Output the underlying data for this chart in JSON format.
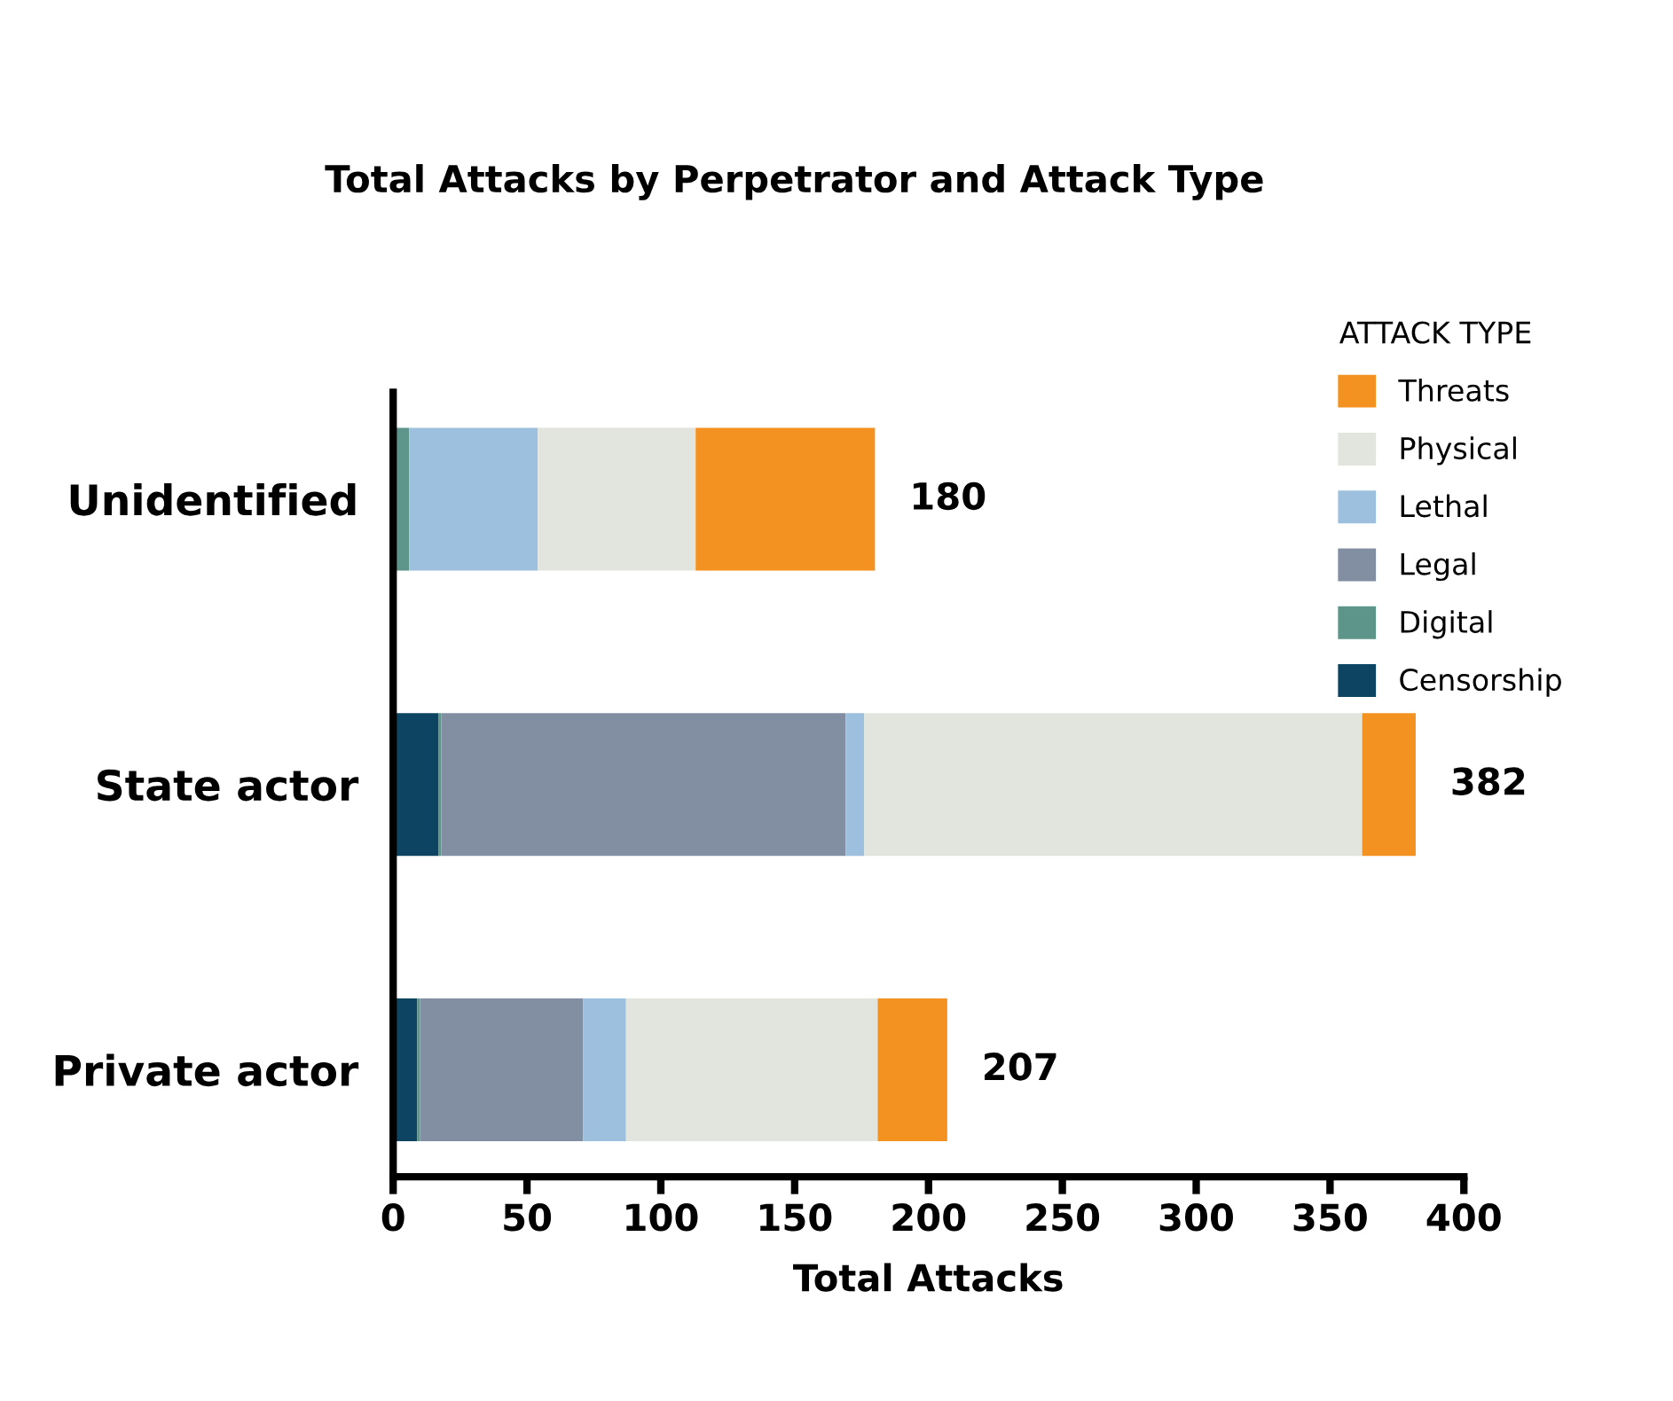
{
  "chart_data": {
    "type": "bar",
    "orientation": "horizontal",
    "stacked": true,
    "title": "Total Attacks by Perpetrator and Attack Type",
    "xlabel": "Total Attacks",
    "legend_title": "ATTACK TYPE",
    "legend": "top right",
    "grid": false,
    "categories": [
      "Unidentified",
      "State actor",
      "Private actor"
    ],
    "series": [
      {
        "name": "Censorship",
        "color": "#0d4462",
        "values": [
          0,
          17,
          9
        ]
      },
      {
        "name": "Digital",
        "color": "#5e958a",
        "values": [
          6,
          1,
          1
        ]
      },
      {
        "name": "Legal",
        "color": "#828fa3",
        "values": [
          0,
          151,
          61
        ]
      },
      {
        "name": "Lethal",
        "color": "#9dc0de",
        "values": [
          48,
          7,
          16
        ]
      },
      {
        "name": "Physical",
        "color": "#e2e4de",
        "values": [
          59,
          186,
          94
        ]
      },
      {
        "name": "Threats",
        "color": "#f39221",
        "values": [
          67,
          20,
          26
        ]
      }
    ],
    "totals": [
      "180",
      "382",
      "207"
    ],
    "xlim": [
      0,
      400
    ],
    "xticks": [
      0,
      50,
      100,
      150,
      200,
      250,
      300,
      350,
      400
    ]
  }
}
